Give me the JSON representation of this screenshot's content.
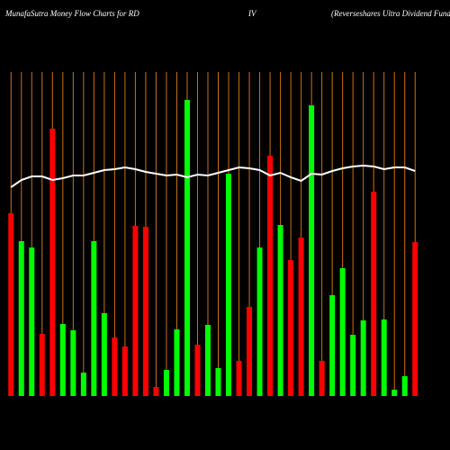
{
  "chart_data": {
    "type": "bar",
    "title": "MunafaSutra  Money Flow  Charts for RD",
    "subtitle": "IV",
    "annotation": "(Reverseshares Ultra Dividend Fund",
    "categories": [
      null,
      null,
      null,
      null,
      null,
      null,
      null,
      null,
      null,
      null,
      null,
      null,
      null,
      null,
      null,
      null,
      null,
      null,
      null,
      null,
      null,
      null,
      null,
      null,
      null,
      null,
      null,
      null,
      null,
      null,
      null,
      null,
      null,
      null,
      null,
      null,
      null,
      null,
      null,
      null
    ],
    "values": [
      203,
      172,
      165,
      69,
      297,
      80,
      73,
      26,
      172,
      92,
      65,
      55,
      189,
      188,
      10,
      29,
      74,
      329,
      57,
      79,
      31,
      247,
      39,
      99,
      165,
      267,
      190,
      151,
      176,
      323,
      39,
      112,
      142,
      68,
      84,
      227,
      85,
      7,
      22,
      171
    ],
    "colors": [
      "#ff0000",
      "#00ff00",
      "#00ff00",
      "#ff0000",
      "#ff0000",
      "#00ff00",
      "#00ff00",
      "#00ff00",
      "#00ff00",
      "#00ff00",
      "#ff0000",
      "#ff0000",
      "#ff0000",
      "#ff0000",
      "#ff0000",
      "#00ff00",
      "#00ff00",
      "#00ff00",
      "#ff0000",
      "#00ff00",
      "#00ff00",
      "#00ff00",
      "#ff0000",
      "#ff0000",
      "#00ff00",
      "#ff0000",
      "#00ff00",
      "#ff0000",
      "#ff0000",
      "#00ff00",
      "#ff0000",
      "#00ff00",
      "#00ff00",
      "#00ff00",
      "#00ff00",
      "#ff0000",
      "#00ff00",
      "#00ff00",
      "#00ff00",
      "#ff0000"
    ],
    "line": {
      "color": "#ffffff",
      "values": [
        232,
        240,
        244,
        244,
        240,
        242,
        245,
        245,
        248,
        251,
        252,
        254,
        252,
        249,
        247,
        245,
        246,
        243,
        246,
        245,
        248,
        251,
        254,
        253,
        251,
        245,
        248,
        243,
        239,
        247,
        246,
        250,
        253,
        255,
        256,
        255,
        252,
        254,
        254,
        250
      ]
    },
    "category_line_color": "#c87319",
    "ylim": [
      0,
      440
    ]
  }
}
